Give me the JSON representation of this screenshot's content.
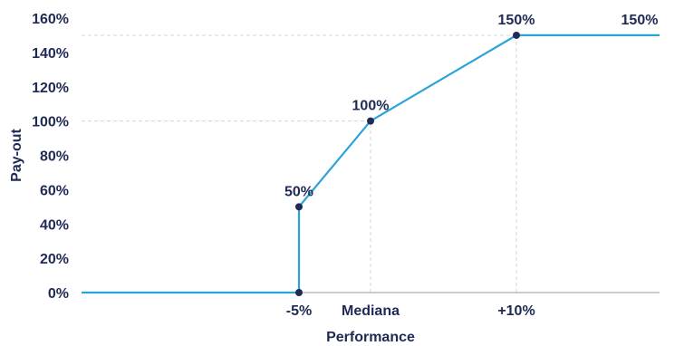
{
  "chart_data": {
    "type": "line",
    "title": "",
    "xlabel": "Performance",
    "ylabel": "Pay-out",
    "ylim": [
      0,
      160
    ],
    "y_ticks": [
      "0%",
      "20%",
      "40%",
      "60%",
      "80%",
      "100%",
      "120%",
      "140%",
      "160%"
    ],
    "y_tick_values": [
      0,
      20,
      40,
      60,
      80,
      100,
      120,
      140,
      160
    ],
    "x_ticks": [
      {
        "label": "-5%",
        "x": -5
      },
      {
        "label": "Mediana",
        "x": 0
      },
      {
        "label": "+10%",
        "x": 10
      }
    ],
    "xlim": [
      -20,
      20
    ],
    "series": [
      {
        "points": [
          {
            "x": -20,
            "y": 0
          },
          {
            "x": -5,
            "y": 0
          },
          {
            "x": -5,
            "y": 50
          },
          {
            "x": 0,
            "y": 100
          },
          {
            "x": 10,
            "y": 150
          },
          {
            "x": 20,
            "y": 150
          }
        ]
      }
    ],
    "markers": [
      {
        "x": -5,
        "y": 0
      },
      {
        "x": -5,
        "y": 50
      },
      {
        "x": 0,
        "y": 100
      },
      {
        "x": 10,
        "y": 150
      }
    ],
    "data_labels": [
      {
        "text": "50%",
        "x": -5,
        "y": 50
      },
      {
        "text": "100%",
        "x": 0,
        "y": 100
      },
      {
        "text": "150%",
        "x": 10,
        "y": 150
      },
      {
        "text": "150%",
        "x": 20,
        "y": 150
      }
    ],
    "reference_lines": [
      {
        "axis": "y",
        "value": 100,
        "from_x": -20,
        "to_x": 0
      },
      {
        "axis": "y",
        "value": 150,
        "from_x": -20,
        "to_x": 10
      },
      {
        "axis": "x",
        "value": 0,
        "from_y": 0,
        "to_y": 100
      },
      {
        "axis": "x",
        "value": 10,
        "from_y": 0,
        "to_y": 150
      }
    ],
    "colors": {
      "line": "#2aa3d9",
      "marker": "#1f2a55",
      "text": "#1f2a55",
      "grid": "#d4d4d4"
    }
  }
}
